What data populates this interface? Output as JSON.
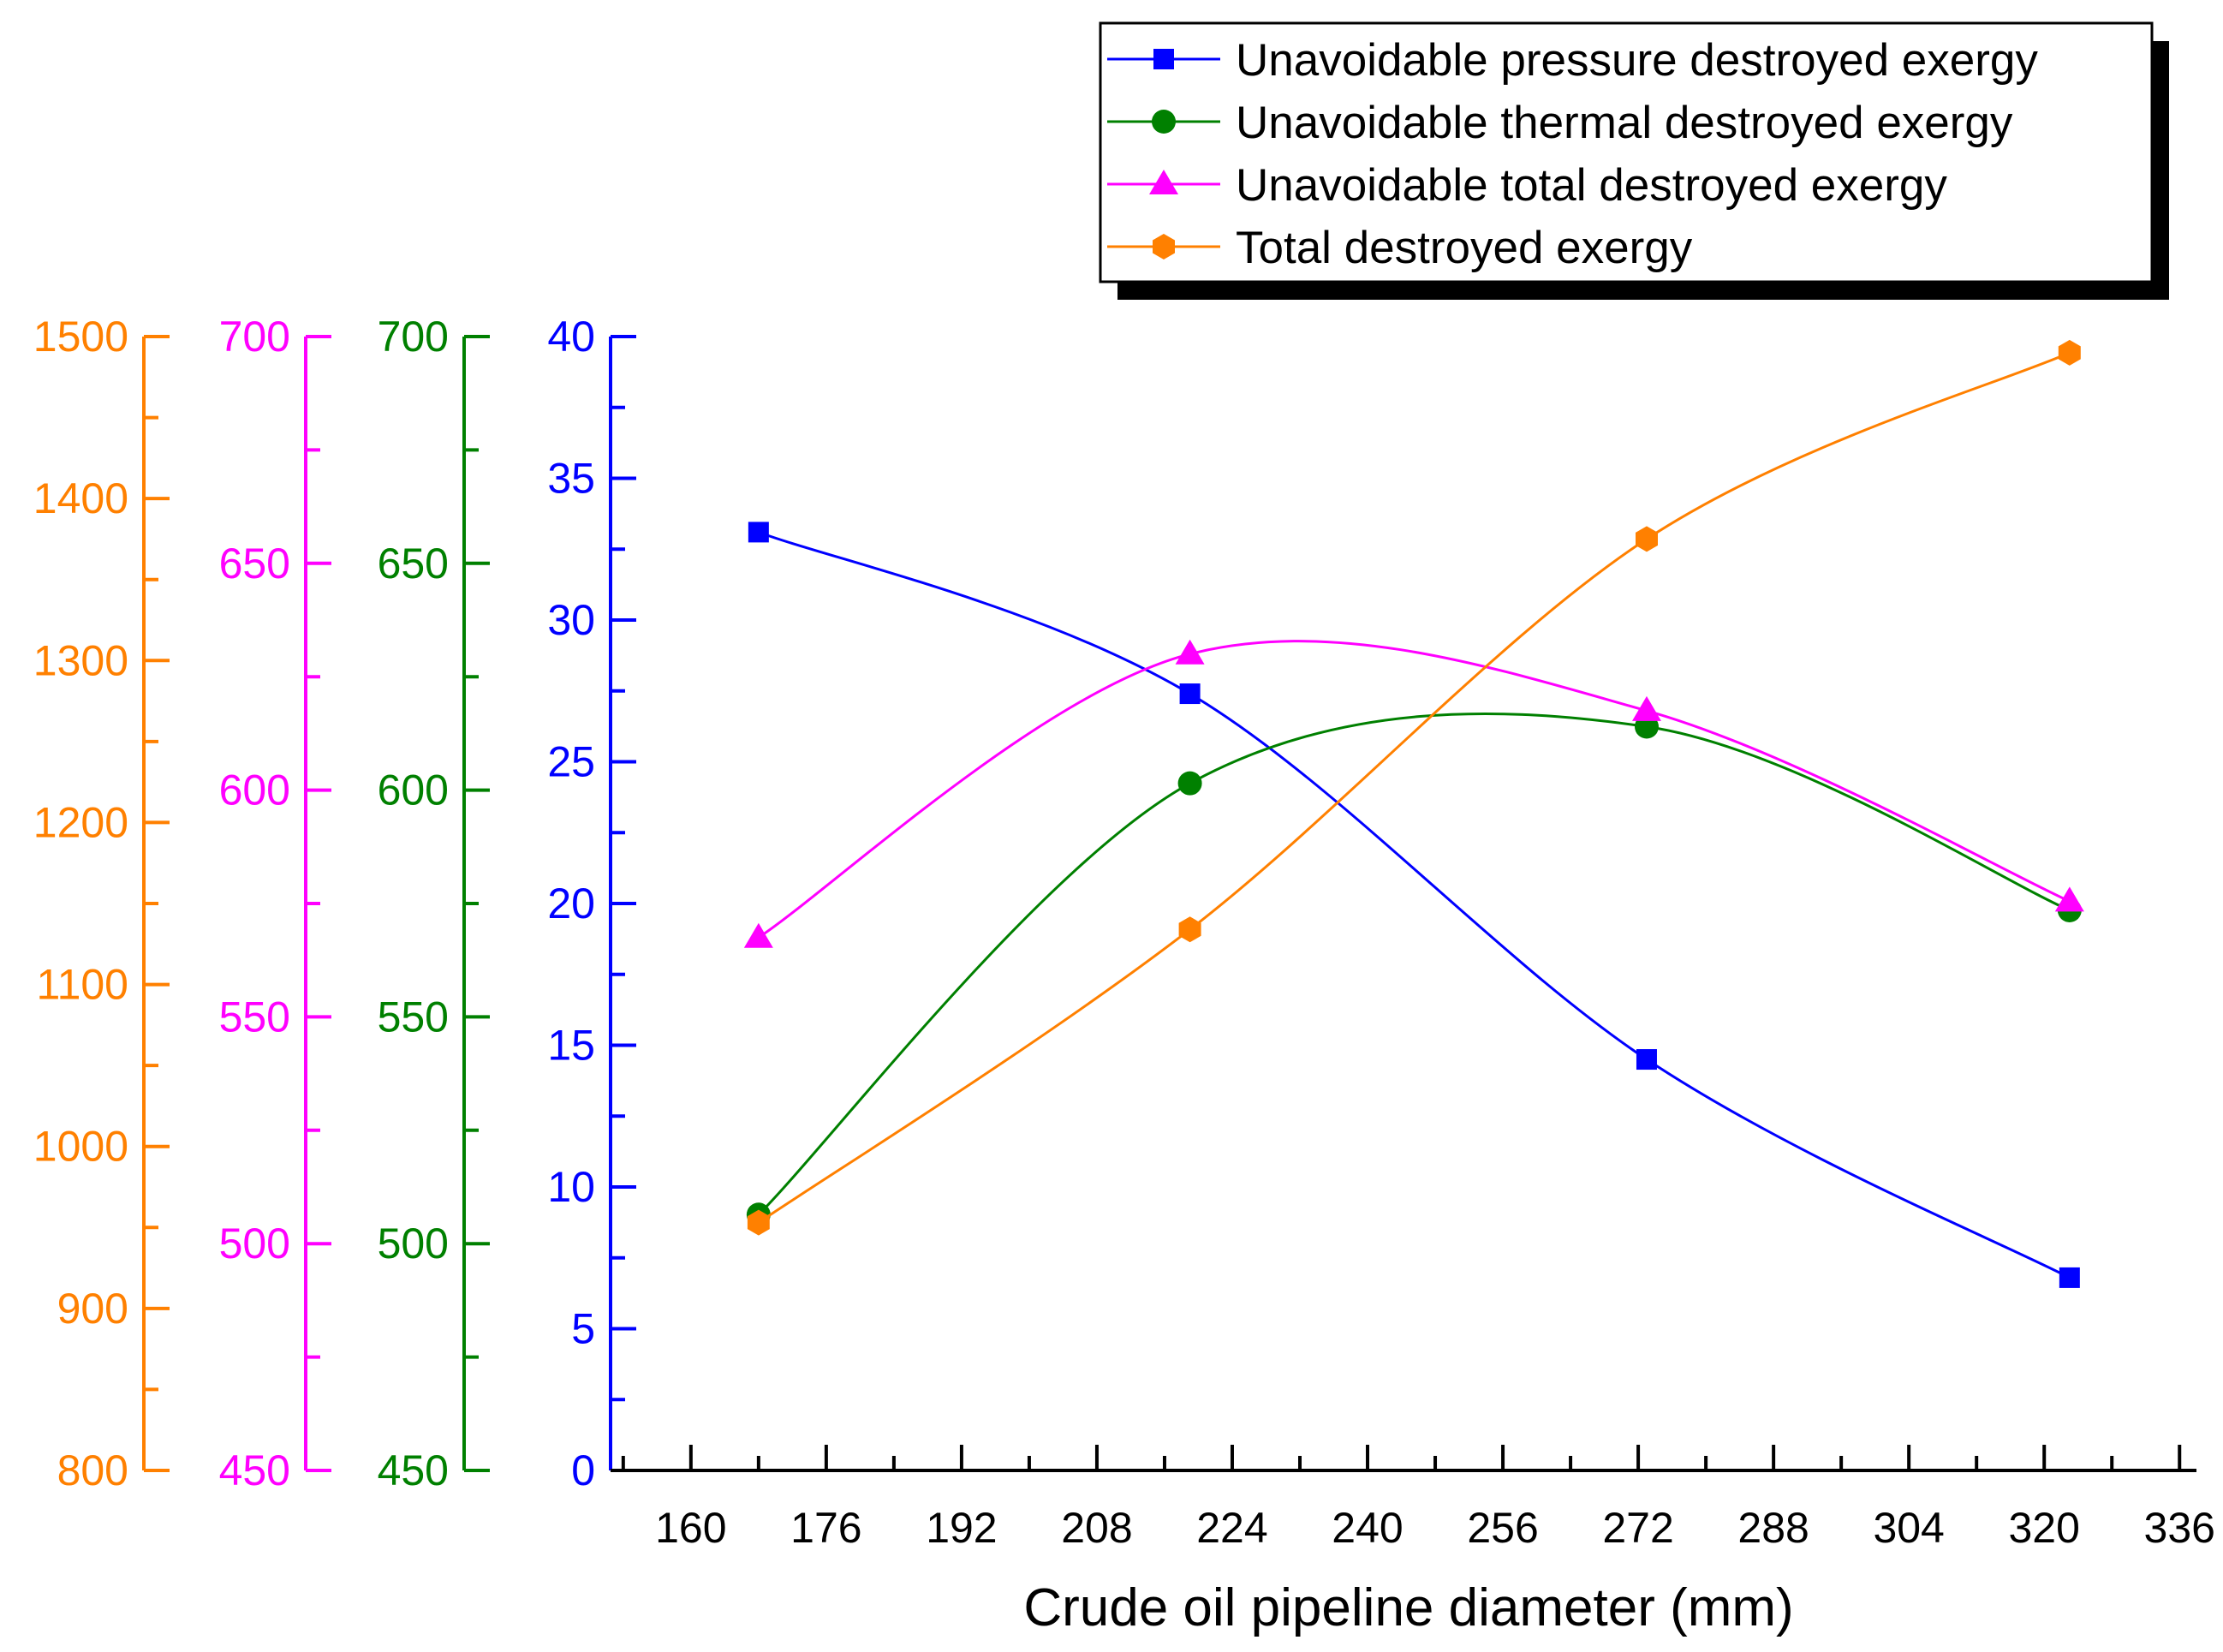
{
  "chart_data": {
    "type": "line",
    "xlabel": "Crude oil pipeline diameter (mm)",
    "x_ticks": [
      160,
      176,
      192,
      208,
      224,
      240,
      256,
      272,
      288,
      304,
      320,
      336
    ],
    "xlim": [
      150.5,
      338
    ],
    "x": [
      168,
      219,
      273,
      323
    ],
    "series": [
      {
        "name": "Unavoidable pressure destroyed exergy",
        "color": "#0000ff",
        "marker": "square",
        "axis": "blue",
        "values": [
          33.1,
          27.4,
          14.5,
          6.8
        ]
      },
      {
        "name": "Unavoidable thermal destroyed exergy",
        "color": "#008000",
        "marker": "circle",
        "axis": "green",
        "values": [
          506.4,
          601.5,
          614.0,
          573.5
        ]
      },
      {
        "name": "Unavoidable total destroyed exergy",
        "color": "#ff00ff",
        "marker": "triangle",
        "axis": "magenta",
        "values": [
          567.5,
          630.0,
          617.5,
          575.5
        ]
      },
      {
        "name": "Total destroyed exergy",
        "color": "#ff8000",
        "marker": "hexagon",
        "axis": "orange",
        "values": [
          953,
          1134,
          1375,
          1490
        ]
      }
    ],
    "y_axes": [
      {
        "id": "blue",
        "color": "#0000ff",
        "ylim": [
          0,
          40
        ],
        "ticks": [
          0,
          5,
          10,
          15,
          20,
          25,
          30,
          35,
          40
        ]
      },
      {
        "id": "green",
        "color": "#008000",
        "ylim": [
          450,
          700
        ],
        "ticks": [
          450,
          500,
          550,
          600,
          650,
          700
        ]
      },
      {
        "id": "magenta",
        "color": "#ff00ff",
        "ylim": [
          450,
          700
        ],
        "ticks": [
          450,
          500,
          550,
          600,
          650,
          700
        ]
      },
      {
        "id": "orange",
        "color": "#ff8000",
        "ylim": [
          800,
          1500
        ],
        "ticks": [
          800,
          900,
          1000,
          1100,
          1200,
          1300,
          1400,
          1500
        ]
      }
    ],
    "legend_position": "top-right"
  }
}
